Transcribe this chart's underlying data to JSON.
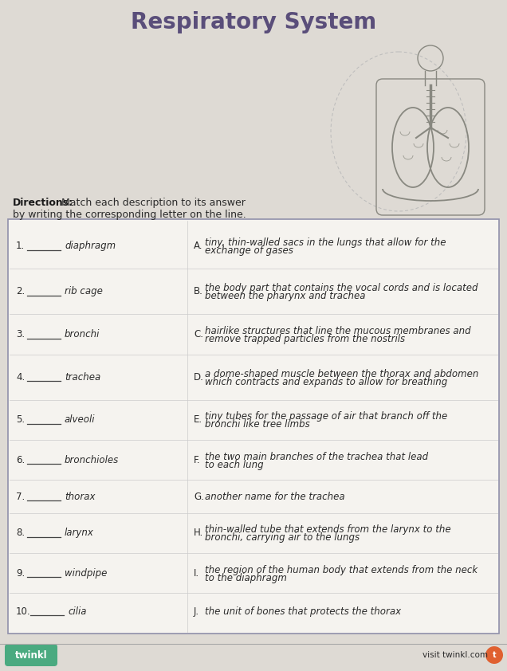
{
  "title": "Respiratory System",
  "bg_color": "#dedad4",
  "box_bg": "#f5f3ef",
  "title_color": "#5a4e7a",
  "text_color": "#2a2a2a",
  "bold_color": "#1a1a1a",
  "items": [
    {
      "num": "1.",
      "term": "diaphragm",
      "letter": "A.",
      "definition": "tiny, thin-walled sacs in the lungs that allow for the\nexchange of gases"
    },
    {
      "num": "2.",
      "term": "rib cage",
      "letter": "B.",
      "definition": "the body part that contains the vocal cords and is located\nbetween the pharynx and trachea"
    },
    {
      "num": "3.",
      "term": "bronchi",
      "letter": "C.",
      "definition": "hairlike structures that line the mucous membranes and\nremove trapped particles from the nostrils"
    },
    {
      "num": "4.",
      "term": "trachea",
      "letter": "D.",
      "definition": "a dome-shaped muscle between the thorax and abdomen\nwhich contracts and expands to allow for breathing"
    },
    {
      "num": "5.",
      "term": "alveoli",
      "letter": "E.",
      "definition": "tiny tubes for the passage of air that branch off the\nbronchi like tree limbs"
    },
    {
      "num": "6.",
      "term": "bronchioles",
      "letter": "F.",
      "definition": "the two main branches of the trachea that lead\nto each lung"
    },
    {
      "num": "7.",
      "term": "thorax",
      "letter": "G.",
      "definition": "another name for the trachea"
    },
    {
      "num": "8.",
      "term": "larynx",
      "letter": "H.",
      "definition": "thin-walled tube that extends from the larynx to the\nbronchi, carrying air to the lungs"
    },
    {
      "num": "9.",
      "term": "windpipe",
      "letter": "I.",
      "definition": "the region of the human body that extends from the neck\nto the diaphragm"
    },
    {
      "num": "10.",
      "term": "cilia",
      "letter": "J.",
      "definition": "the unit of bones that protects the thorax"
    }
  ],
  "footer_left": "twinkl",
  "footer_right": "visit twinkl.com",
  "box_border_color": "#9090aa",
  "line_color": "#444444",
  "twinkl_green": "#4aaa80",
  "twinkl_orange": "#e06030"
}
